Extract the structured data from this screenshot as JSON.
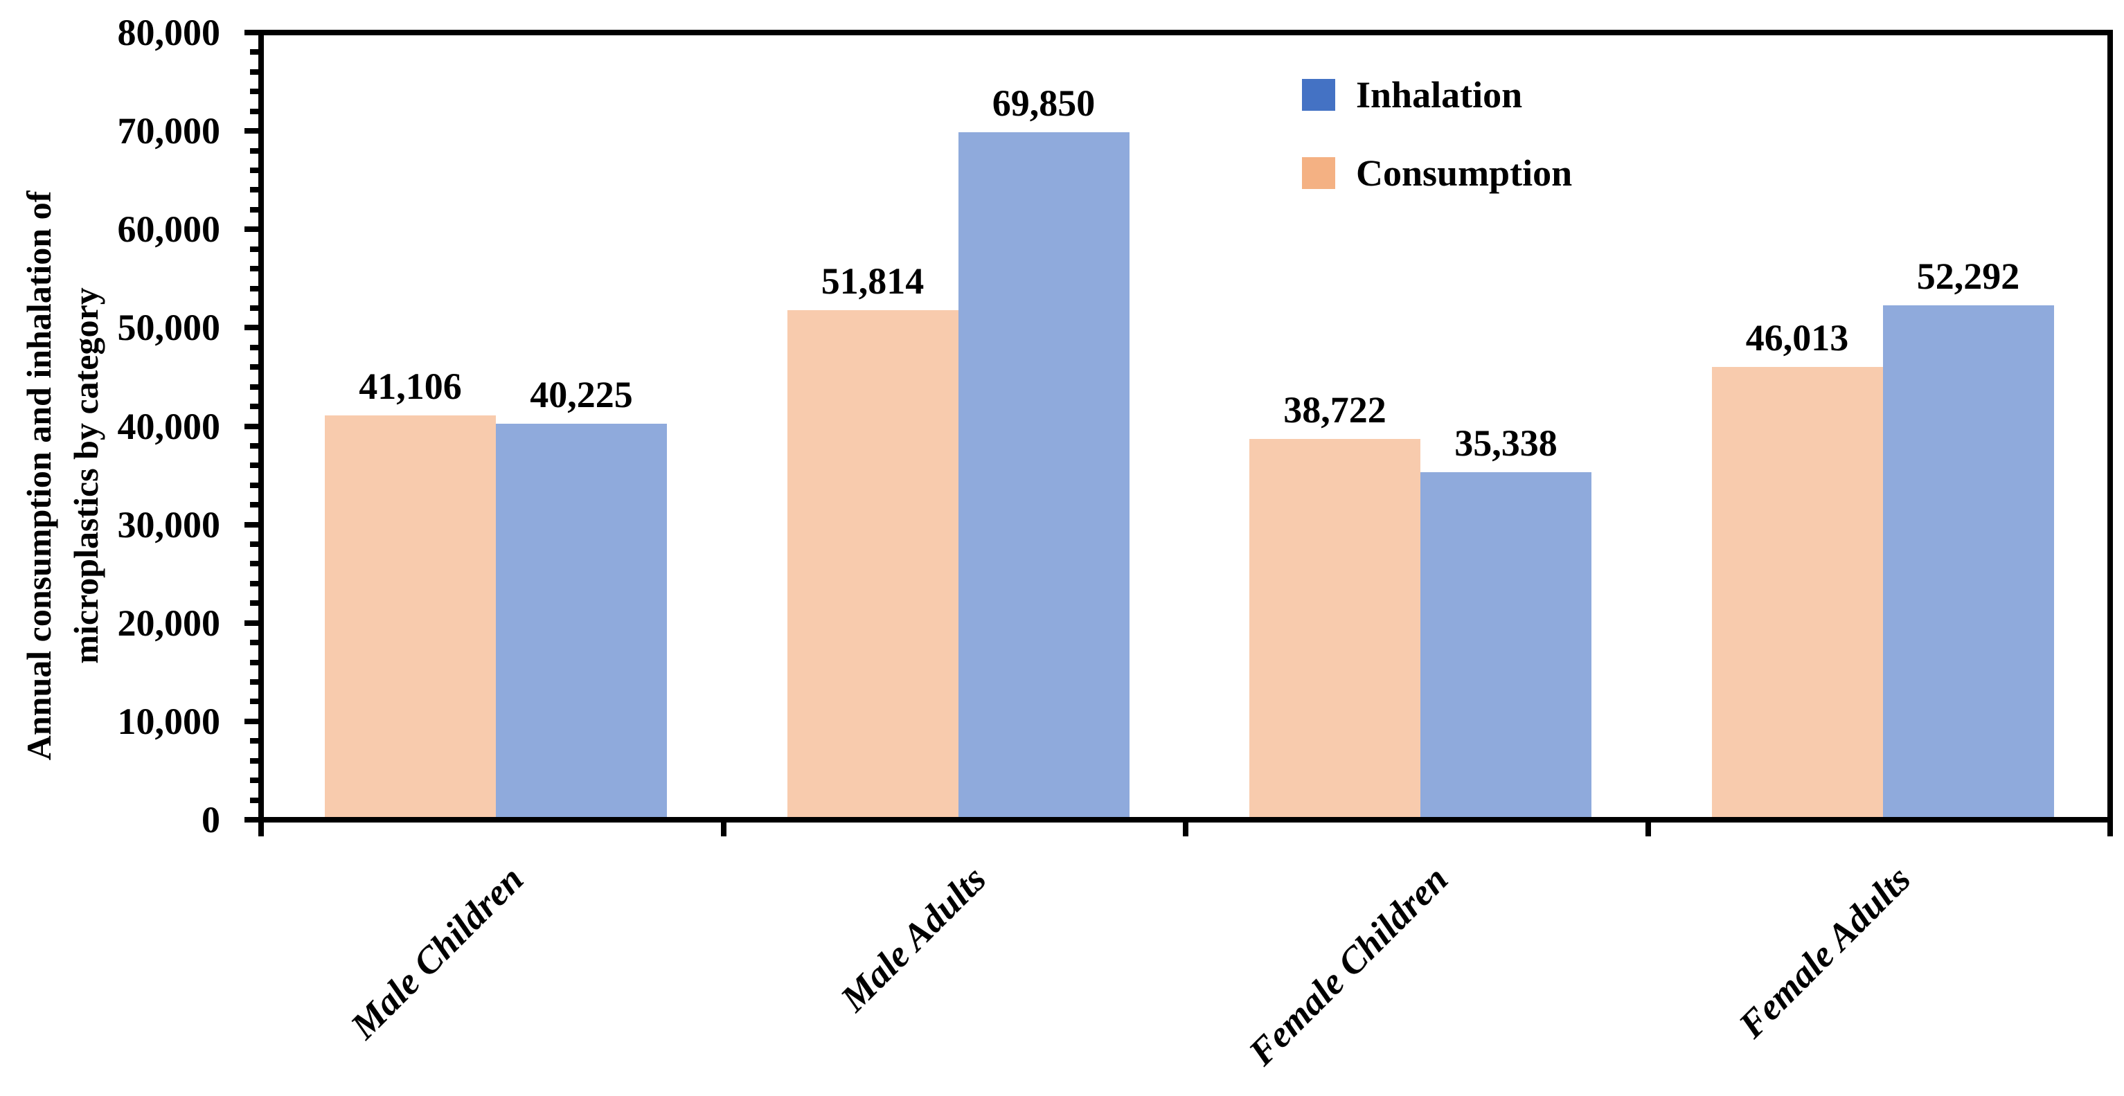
{
  "chart_data": {
    "type": "bar",
    "title": "",
    "categories": [
      "Male Children",
      "Male Adults",
      "Female Children",
      "Female Adults"
    ],
    "series": [
      {
        "name": "Consumption",
        "values": [
          41106,
          51814,
          38722,
          46013
        ],
        "bar_color": "#F8CBAD",
        "legend_color": "#F4B183"
      },
      {
        "name": "Inhalation",
        "values": [
          40225,
          69850,
          35338,
          52292
        ],
        "bar_color": "#8FAADC",
        "legend_color": "#4472C4"
      }
    ],
    "data_labels": [
      "41,106",
      "40,225",
      "51,814",
      "69,850",
      "38,722",
      "35,338",
      "46,013",
      "52,292"
    ],
    "ylabel": "Annual consumption and inhalation of microplastics by category",
    "ylabel_lines": [
      "Annual consumption and inhalation of",
      "microplastics by category"
    ],
    "xlabel": "",
    "ylim": [
      0,
      80000
    ],
    "ytick_step": 10000,
    "ytick_minor_step": 2000,
    "ytick_labels": [
      "0",
      "10,000",
      "20,000",
      "30,000",
      "40,000",
      "50,000",
      "60,000",
      "70,000",
      "80,000"
    ],
    "grid": false,
    "legend": {
      "position": "top-right",
      "items": [
        {
          "label": "Inhalation",
          "color": "#4472C4"
        },
        {
          "label": "Consumption",
          "color": "#F4B183"
        }
      ]
    },
    "axis_color": "#000000",
    "text_color": "#000000",
    "background": "#FFFFFF"
  }
}
